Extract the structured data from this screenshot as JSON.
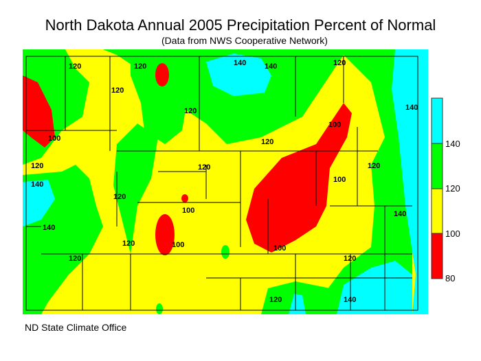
{
  "title": "North Dakota Annual 2005 Precipitation Percent of Normal",
  "subtitle": "(Data from NWS Cooperative Network)",
  "credit": "ND State Climate Office",
  "legend": {
    "ticks": [
      "140",
      "120",
      "100",
      "80"
    ],
    "bins": [
      {
        "range": "140+",
        "color": "#00ffff"
      },
      {
        "range": "120-140",
        "color": "#00ff00"
      },
      {
        "range": "100-120",
        "color": "#ffff00"
      },
      {
        "range": "80-100",
        "color": "#ff0000"
      }
    ]
  },
  "contour_labels": [
    "120",
    "120",
    "140",
    "120",
    "120",
    "120",
    "100",
    "120",
    "140",
    "140",
    "120",
    "140",
    "120",
    "120",
    "100",
    "100",
    "120",
    "100",
    "100",
    "140",
    "120",
    "120",
    "140",
    "120",
    "140",
    "120",
    "100"
  ]
}
